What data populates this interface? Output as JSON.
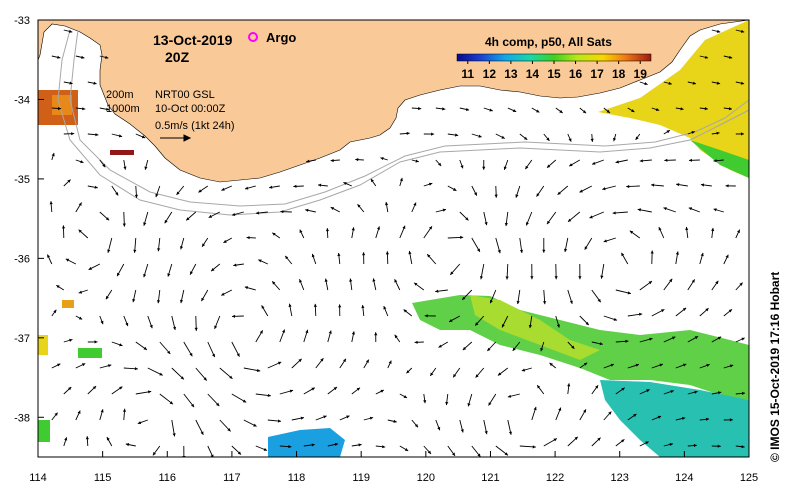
{
  "header": {
    "date": "13-Oct-2019",
    "time": "20Z",
    "argo_label": "Argo",
    "colorbar_title": "4h comp, p50, All Sats"
  },
  "legend": {
    "depth_200": "200m",
    "depth_1000": "1000m",
    "product": "NRT00 GSL",
    "product_date": "10-Oct 00:00Z",
    "scale_text": "0.5m/s (1kt 24h)"
  },
  "colorbar": {
    "ticks": [
      "11",
      "12",
      "13",
      "14",
      "15",
      "16",
      "17",
      "18",
      "19"
    ],
    "min": 10.5,
    "max": 19.5
  },
  "axes": {
    "x_ticks": [
      "114",
      "115",
      "116",
      "117",
      "118",
      "119",
      "120",
      "121",
      "122",
      "123",
      "124",
      "125"
    ],
    "y_ticks": [
      "-33",
      "-34",
      "-35",
      "-36",
      "-37",
      "-38"
    ],
    "x_range": [
      114,
      125
    ],
    "y_range": [
      -38.5,
      -33
    ]
  },
  "credit": "© IMOS 15-Oct-2019 17:16 Hobart",
  "colors": {
    "land": "#f9c998",
    "argo": "#ff00ff",
    "isobath": "#a8a8a8"
  }
}
